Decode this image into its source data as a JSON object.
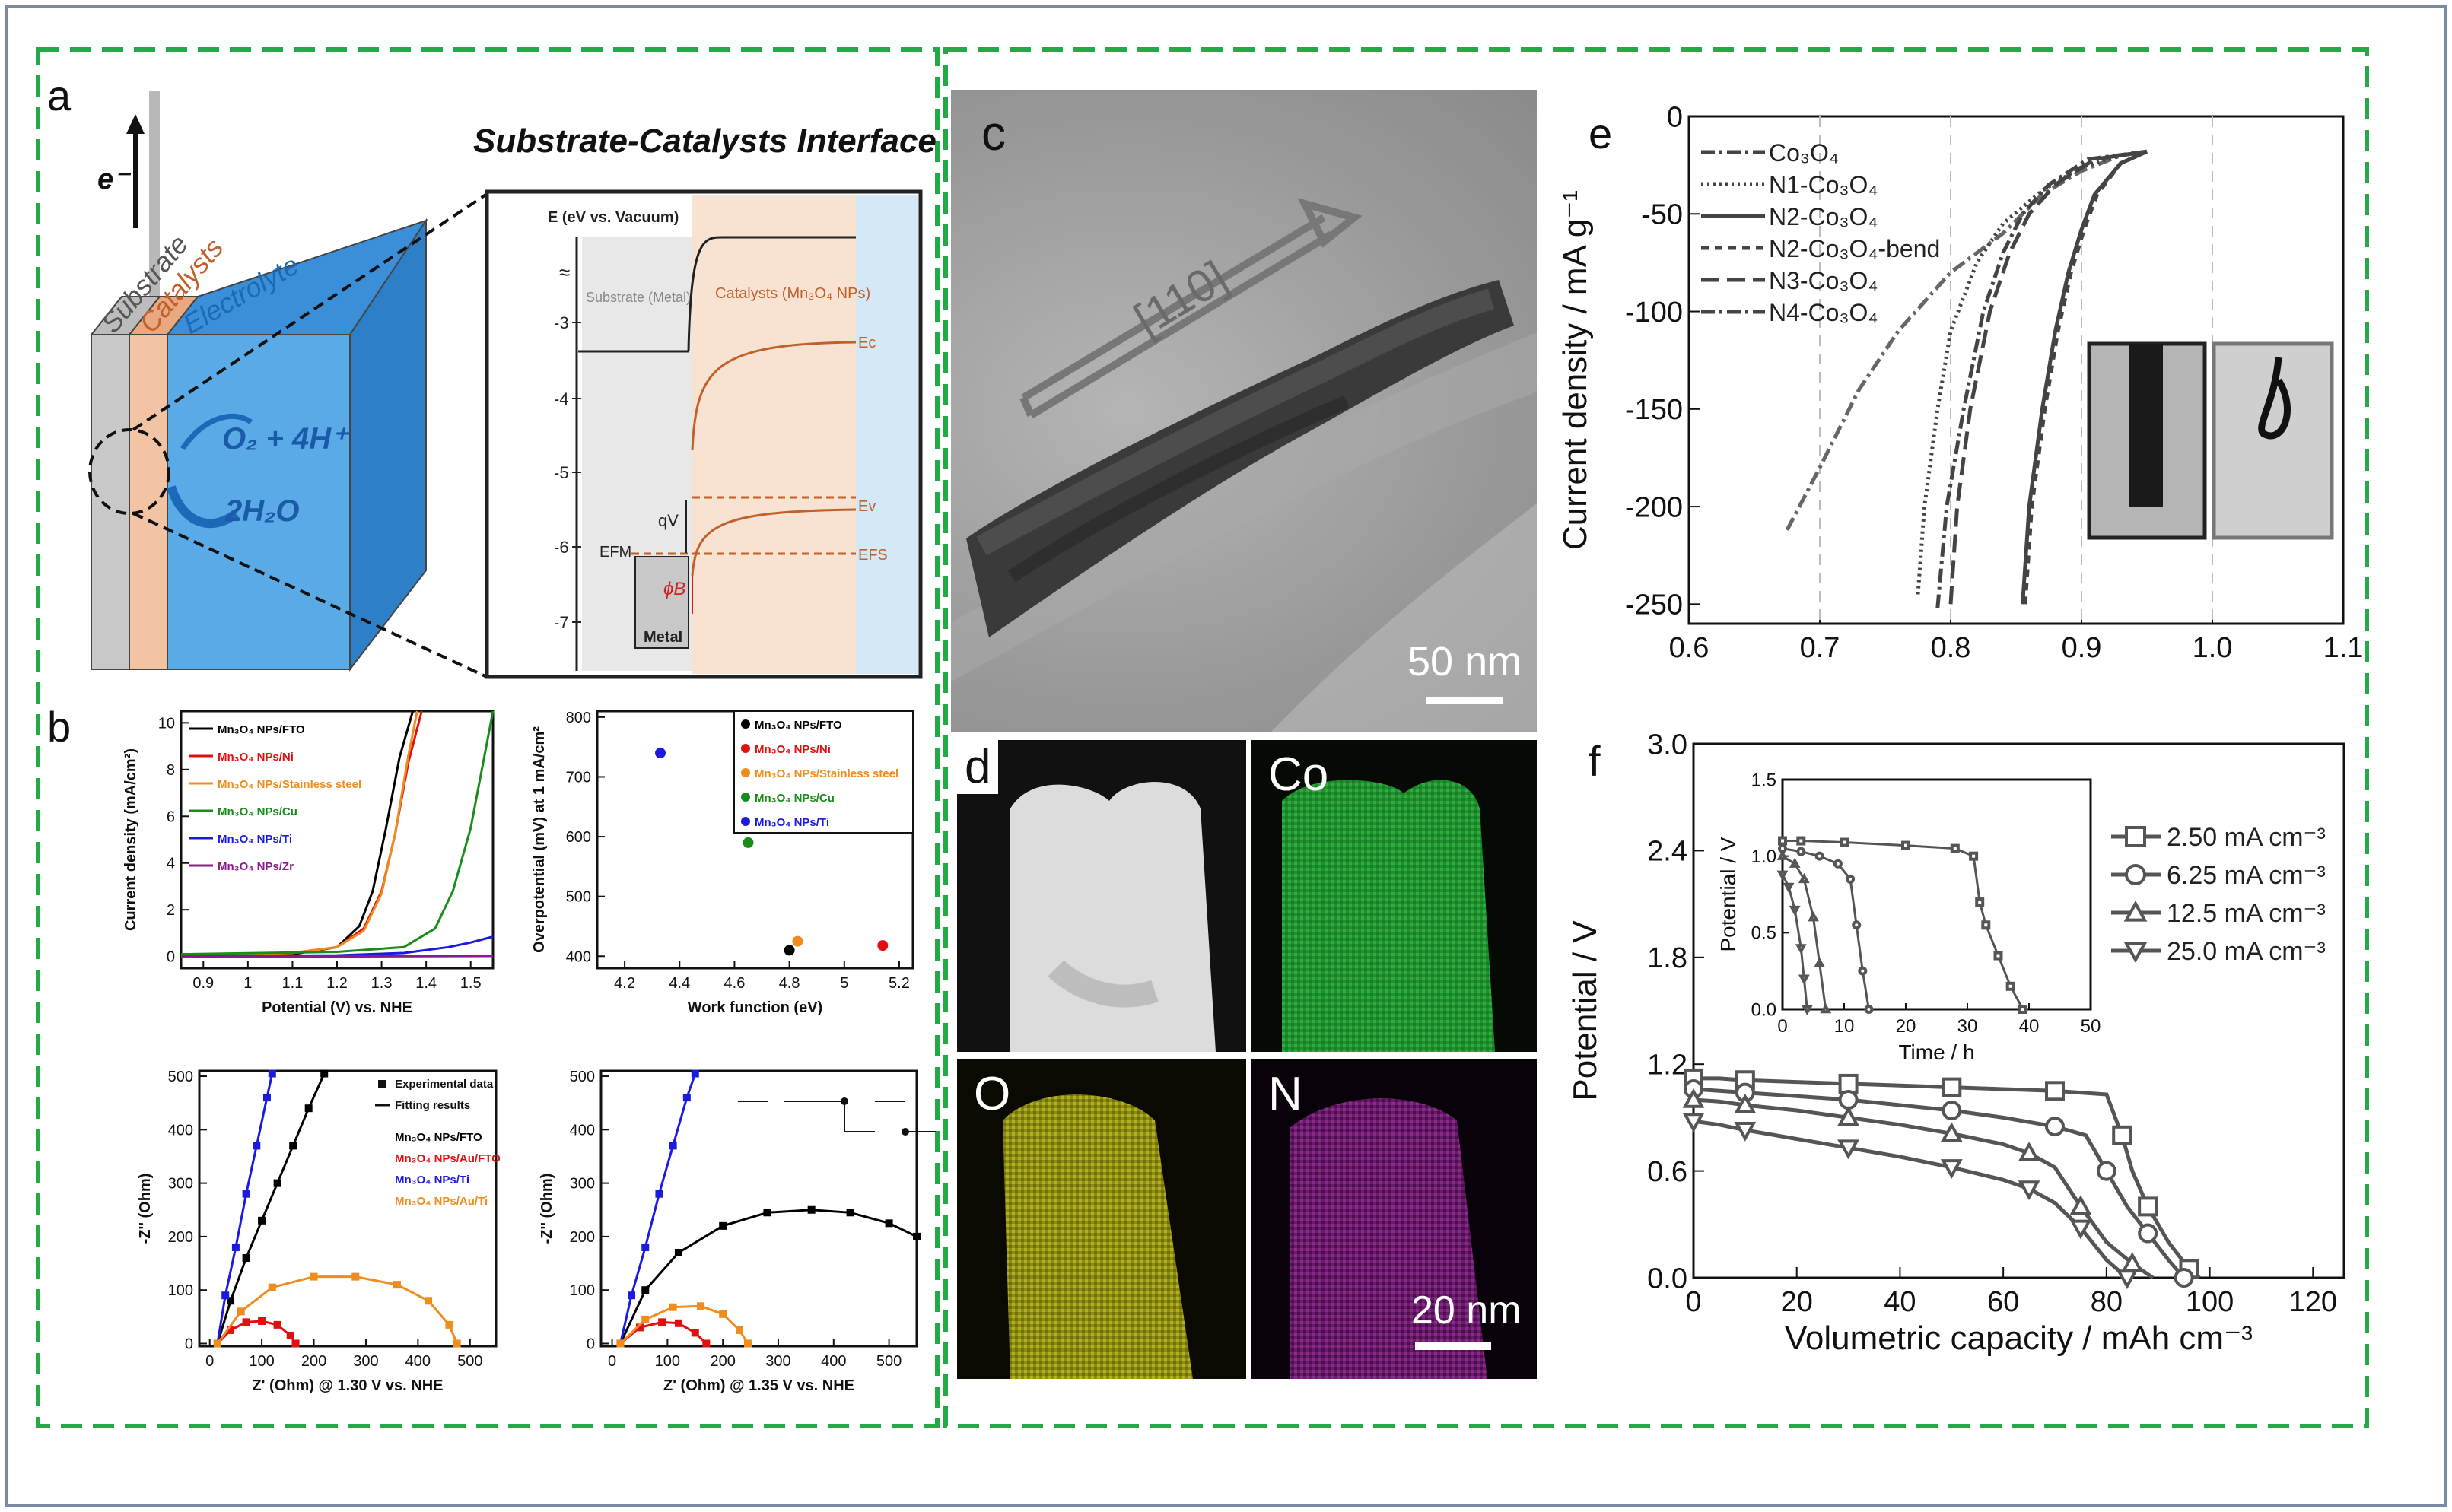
{
  "panels": {
    "a": {
      "label": "a",
      "title": "Substrate-Catalysts Interface",
      "electron": "e⁻",
      "layers": [
        "Substrate",
        "Catalysts",
        "Electrolyte"
      ],
      "reaction_top": "O₂ + 4H⁺",
      "reaction_bottom": "2H₂O",
      "band": {
        "ylabel": "E (eV vs. Vacuum)",
        "ticks": [
          "-3",
          "-4",
          "-5",
          "-6",
          "-7"
        ],
        "substrate_label": "Substrate (Metal)",
        "catalyst_label": "Catalysts (Mn₃O₄ NPs)",
        "Ec": "Ec",
        "Ev": "Ev",
        "Efs": "EFS",
        "Efm": "EFM",
        "qV": "qV",
        "phi": "ϕB",
        "metal": "Metal"
      }
    },
    "b": {
      "label": "b"
    },
    "c": {
      "label": "c",
      "direction": "[110]",
      "scalebar": "50 nm"
    },
    "d": {
      "label": "d",
      "maps": [
        "Co",
        "O",
        "N"
      ],
      "scalebar": "20 nm"
    },
    "e": {
      "label": "e",
      "inset_desc": ""
    },
    "f": {
      "label": "f"
    }
  },
  "chart_data": [
    {
      "id": "b1",
      "type": "line",
      "xlabel": "Potential (V) vs. NHE",
      "ylabel": "Current density (mA/cm²)",
      "xlim": [
        0.85,
        1.55
      ],
      "ylim": [
        -0.5,
        10.5
      ],
      "xticks": [
        0.9,
        1.0,
        1.1,
        1.2,
        1.3,
        1.4,
        1.5
      ],
      "yticks": [
        0,
        2,
        4,
        6,
        8,
        10
      ],
      "series": [
        {
          "name": "Mn₃O₄ NPs/FTO",
          "color": "#000000",
          "x": [
            0.85,
            1.1,
            1.2,
            1.25,
            1.28,
            1.31,
            1.34,
            1.37
          ],
          "y": [
            0.0,
            0.1,
            0.4,
            1.3,
            2.8,
            5.5,
            8.5,
            10.5
          ]
        },
        {
          "name": "Mn₃O₄ NPs/Ni",
          "color": "#e01010",
          "x": [
            0.85,
            1.1,
            1.2,
            1.26,
            1.3,
            1.33,
            1.36,
            1.39
          ],
          "y": [
            0.05,
            0.15,
            0.4,
            1.2,
            2.8,
            5.2,
            8.3,
            10.5
          ]
        },
        {
          "name": "Mn₃O₄ NPs/Stainless steel",
          "color": "#f08c1e",
          "x": [
            0.85,
            1.1,
            1.2,
            1.26,
            1.3,
            1.33,
            1.36,
            1.38
          ],
          "y": [
            0.05,
            0.15,
            0.4,
            1.1,
            2.7,
            5.2,
            8.6,
            10.5
          ]
        },
        {
          "name": "Mn₃O₄ NPs/Cu",
          "color": "#1a8c1a",
          "x": [
            0.85,
            1.2,
            1.35,
            1.42,
            1.46,
            1.5,
            1.53,
            1.55
          ],
          "y": [
            0.1,
            0.2,
            0.4,
            1.2,
            2.8,
            5.5,
            8.5,
            10.5
          ]
        },
        {
          "name": "Mn₃O₄ NPs/Ti",
          "color": "#1a1ae0",
          "x": [
            0.85,
            1.2,
            1.35,
            1.45,
            1.5,
            1.55
          ],
          "y": [
            0.0,
            0.05,
            0.15,
            0.4,
            0.6,
            0.85
          ]
        },
        {
          "name": "Mn₃O₄ NPs/Zr",
          "color": "#8c1a8c",
          "x": [
            0.85,
            1.2,
            1.55
          ],
          "y": [
            0.0,
            0.0,
            0.02
          ]
        }
      ]
    },
    {
      "id": "b2",
      "type": "scatter",
      "xlabel": "Work function (eV)",
      "ylabel": "Overpotential (mV) at 1 mA/cm²",
      "xlim": [
        4.1,
        5.25
      ],
      "ylim": [
        380,
        810
      ],
      "xticks": [
        4.2,
        4.4,
        4.6,
        4.8,
        5.0,
        5.2
      ],
      "yticks": [
        400,
        500,
        600,
        700,
        800
      ],
      "series": [
        {
          "name": "Mn₃O₄ NPs/FTO",
          "color": "#000000",
          "x": [
            4.8
          ],
          "y": [
            410
          ]
        },
        {
          "name": "Mn₃O₄ NPs/Ni",
          "color": "#e01010",
          "x": [
            5.14
          ],
          "y": [
            418
          ]
        },
        {
          "name": "Mn₃O₄ NPs/Stainless steel",
          "color": "#f08c1e",
          "x": [
            4.83
          ],
          "y": [
            425
          ]
        },
        {
          "name": "Mn₃O₄ NPs/Cu",
          "color": "#1a8c1a",
          "x": [
            4.65
          ],
          "y": [
            590
          ]
        },
        {
          "name": "Mn₃O₄ NPs/Ti",
          "color": "#1a1ae0",
          "x": [
            4.33
          ],
          "y": [
            740
          ]
        }
      ]
    },
    {
      "id": "b3",
      "type": "scatter",
      "xlabel": "Z' (Ohm) @ 1.30 V vs. NHE",
      "ylabel": "-Z'' (Ohm)",
      "xlim": [
        -20,
        550
      ],
      "ylim": [
        -5,
        510
      ],
      "xticks": [
        0,
        100,
        200,
        300,
        400,
        500
      ],
      "yticks": [
        0,
        100,
        200,
        300,
        400,
        500
      ],
      "extra_legend": [
        "Experimental data",
        "Fitting results"
      ],
      "series": [
        {
          "name": "Mn₃O₄ NPs/FTO",
          "color": "#000000",
          "x": [
            15,
            40,
            70,
            100,
            130,
            160,
            190,
            220
          ],
          "y": [
            0,
            80,
            160,
            230,
            300,
            370,
            440,
            505
          ]
        },
        {
          "name": "Mn₃O₄ NPs/Au/FTO",
          "color": "#e01010",
          "x": [
            15,
            40,
            70,
            100,
            130,
            155,
            165
          ],
          "y": [
            0,
            25,
            40,
            42,
            35,
            15,
            0
          ]
        },
        {
          "name": "Mn₃O₄ NPs/Ti",
          "color": "#1a1ae0",
          "x": [
            15,
            30,
            50,
            70,
            90,
            110,
            120
          ],
          "y": [
            0,
            90,
            180,
            280,
            370,
            460,
            505
          ]
        },
        {
          "name": "Mn₃O₄ NPs/Au/Ti",
          "color": "#f08c1e",
          "x": [
            15,
            60,
            120,
            200,
            280,
            360,
            420,
            460,
            475
          ],
          "y": [
            0,
            60,
            105,
            125,
            125,
            110,
            80,
            35,
            0
          ]
        }
      ]
    },
    {
      "id": "b4",
      "type": "scatter",
      "xlabel": "Z' (Ohm) @ 1.35 V vs. NHE",
      "ylabel": "-Z'' (Ohm)",
      "xlim": [
        -20,
        550
      ],
      "ylim": [
        -5,
        510
      ],
      "xticks": [
        0,
        100,
        200,
        300,
        400,
        500
      ],
      "yticks": [
        0,
        100,
        200,
        300,
        400,
        500
      ],
      "series": [
        {
          "name": "FTO",
          "color": "#000000",
          "x": [
            15,
            60,
            120,
            200,
            280,
            360,
            430,
            500,
            550
          ],
          "y": [
            0,
            100,
            170,
            220,
            245,
            250,
            245,
            225,
            200
          ]
        },
        {
          "name": "Au/FTO",
          "color": "#e01010",
          "x": [
            15,
            50,
            90,
            120,
            150,
            170
          ],
          "y": [
            0,
            30,
            40,
            38,
            20,
            0
          ]
        },
        {
          "name": "Ti",
          "color": "#1a1ae0",
          "x": [
            15,
            35,
            60,
            85,
            110,
            135,
            150
          ],
          "y": [
            0,
            90,
            180,
            280,
            370,
            460,
            505
          ]
        },
        {
          "name": "Au/Ti",
          "color": "#f08c1e",
          "x": [
            15,
            60,
            110,
            160,
            200,
            230,
            245
          ],
          "y": [
            0,
            45,
            68,
            70,
            55,
            25,
            0
          ]
        }
      ]
    },
    {
      "id": "e",
      "type": "line",
      "xlabel": "",
      "ylabel": "Current density / mA g⁻¹",
      "xlim": [
        0.6,
        1.1
      ],
      "ylim": [
        -260,
        0
      ],
      "xticks": [
        0.6,
        0.7,
        0.8,
        0.9,
        1.0,
        1.1
      ],
      "yticks": [
        0,
        -50,
        -100,
        -150,
        -200,
        -250
      ],
      "series": [
        {
          "name": "Co₃O₄",
          "dash": "18,6,4,6",
          "x": [
            0.675,
            0.7,
            0.73,
            0.76,
            0.8,
            0.84,
            0.87,
            0.9,
            0.93,
            0.95
          ],
          "y": [
            -212,
            -180,
            -140,
            -110,
            -80,
            -60,
            -40,
            -28,
            -20,
            -18
          ]
        },
        {
          "name": "N1-Co₃O₄",
          "dash": "3,5",
          "x": [
            0.775,
            0.78,
            0.79,
            0.8,
            0.82,
            0.84,
            0.87,
            0.9,
            0.93,
            0.95
          ],
          "y": [
            -245,
            -200,
            -150,
            -110,
            -75,
            -55,
            -38,
            -26,
            -20,
            -18
          ]
        },
        {
          "name": "N2-Co₃O₄",
          "dash": "",
          "x": [
            0.855,
            0.86,
            0.87,
            0.88,
            0.89,
            0.9,
            0.91,
            0.93,
            0.95
          ],
          "y": [
            -250,
            -200,
            -150,
            -110,
            -80,
            -58,
            -40,
            -24,
            -18
          ]
        },
        {
          "name": "N2-Co₃O₄-bend",
          "dash": "10,8",
          "x": [
            0.857,
            0.862,
            0.872,
            0.882,
            0.892,
            0.902,
            0.912,
            0.93,
            0.95
          ],
          "y": [
            -250,
            -200,
            -150,
            -110,
            -80,
            -58,
            -40,
            -24,
            -18
          ]
        },
        {
          "name": "N3-Co₃O₄",
          "dash": "24,10",
          "x": [
            0.8,
            0.805,
            0.815,
            0.83,
            0.845,
            0.86,
            0.88,
            0.91,
            0.95
          ],
          "y": [
            -250,
            -200,
            -150,
            -100,
            -70,
            -50,
            -35,
            -22,
            -18
          ]
        },
        {
          "name": "N4-Co₃O₄",
          "dash": "18,6,4,6",
          "x": [
            0.79,
            0.797,
            0.81,
            0.825,
            0.84,
            0.855,
            0.875,
            0.905,
            0.95
          ],
          "y": [
            -252,
            -200,
            -150,
            -100,
            -70,
            -50,
            -35,
            -22,
            -18
          ]
        }
      ]
    },
    {
      "id": "f",
      "type": "line",
      "xlabel": "Volumetric capacity / mAh cm⁻³",
      "ylabel": "Potential / V",
      "xlim": [
        0,
        126
      ],
      "ylim": [
        0,
        3.0
      ],
      "xticks": [
        0,
        20,
        40,
        60,
        80,
        100,
        120
      ],
      "yticks": [
        0.0,
        0.6,
        1.2,
        1.8,
        2.4,
        3.0
      ],
      "series": [
        {
          "name": "2.50 mA cm⁻³",
          "marker": "square",
          "x": [
            0,
            5,
            10,
            20,
            30,
            40,
            50,
            60,
            70,
            80,
            83,
            85,
            88,
            92,
            96,
            98
          ],
          "y": [
            1.12,
            1.12,
            1.11,
            1.1,
            1.09,
            1.08,
            1.07,
            1.06,
            1.05,
            1.03,
            0.8,
            0.6,
            0.4,
            0.2,
            0.05,
            0.0
          ]
        },
        {
          "name": "6.25 mA cm⁻³",
          "marker": "circle",
          "x": [
            0,
            5,
            10,
            20,
            30,
            40,
            50,
            60,
            70,
            76,
            80,
            84,
            88,
            92,
            95
          ],
          "y": [
            1.06,
            1.05,
            1.04,
            1.02,
            1.0,
            0.97,
            0.94,
            0.9,
            0.85,
            0.8,
            0.6,
            0.4,
            0.25,
            0.1,
            0.0
          ]
        },
        {
          "name": "12.5 mA cm⁻³",
          "marker": "triangle-up",
          "x": [
            0,
            5,
            10,
            20,
            30,
            40,
            50,
            60,
            65,
            70,
            75,
            80,
            85,
            89
          ],
          "y": [
            1.0,
            0.99,
            0.97,
            0.94,
            0.9,
            0.86,
            0.81,
            0.75,
            0.7,
            0.62,
            0.4,
            0.2,
            0.08,
            0.0
          ]
        },
        {
          "name": "25.0 mA cm⁻³",
          "marker": "triangle-down",
          "x": [
            0,
            5,
            10,
            20,
            30,
            40,
            50,
            60,
            65,
            70,
            75,
            80,
            84
          ],
          "y": [
            0.88,
            0.86,
            0.83,
            0.78,
            0.73,
            0.68,
            0.62,
            0.55,
            0.5,
            0.42,
            0.28,
            0.1,
            0.0
          ]
        }
      ],
      "inset": {
        "xlabel": "Time / h",
        "ylabel": "Potential / V",
        "xlim": [
          0,
          50
        ],
        "ylim": [
          0,
          1.5
        ],
        "xticks": [
          0,
          10,
          20,
          30,
          40,
          50
        ],
        "yticks": [
          0.0,
          0.5,
          1.0,
          1.5
        ],
        "series": [
          {
            "name": "2.50",
            "x": [
              0,
              3,
              10,
              20,
              28,
              31,
              32,
              33,
              35,
              37,
              39
            ],
            "y": [
              1.1,
              1.1,
              1.09,
              1.07,
              1.05,
              1.0,
              0.7,
              0.55,
              0.35,
              0.15,
              0.0
            ]
          },
          {
            "name": "6.25",
            "x": [
              0,
              3,
              6,
              9,
              11,
              12,
              13,
              14
            ],
            "y": [
              1.05,
              1.03,
              1.0,
              0.95,
              0.85,
              0.55,
              0.25,
              0.0
            ]
          },
          {
            "name": "12.5",
            "x": [
              0,
              2,
              3.5,
              5,
              6,
              7
            ],
            "y": [
              1.0,
              0.95,
              0.85,
              0.6,
              0.3,
              0.0
            ]
          },
          {
            "name": "25.0",
            "x": [
              0,
              1,
              2,
              3,
              3.5,
              4
            ],
            "y": [
              0.88,
              0.8,
              0.65,
              0.4,
              0.2,
              0.0
            ]
          }
        ]
      }
    }
  ]
}
